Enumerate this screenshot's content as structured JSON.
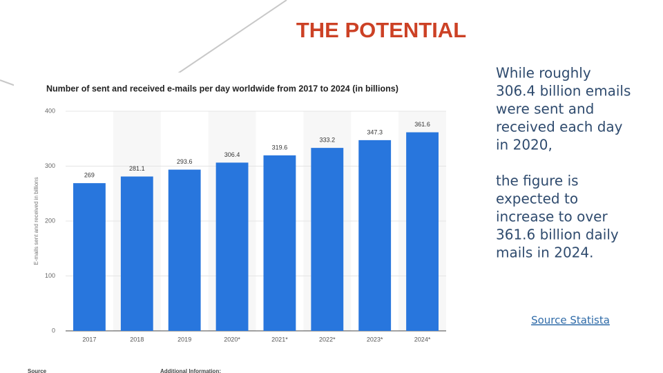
{
  "slide_title": "THE POTENTIAL",
  "chart_data": {
    "type": "bar",
    "title": "Number of sent and received e-mails per day worldwide from 2017 to 2024 (in billions)",
    "y_label": "E-mails sent and received in billions",
    "categories": [
      "2017",
      "2018",
      "2019",
      "2020*",
      "2021*",
      "2022*",
      "2023*",
      "2024*"
    ],
    "values": [
      269,
      281.1,
      293.6,
      306.4,
      319.6,
      333.2,
      347.3,
      361.6
    ],
    "color": "#2876dd",
    "ylim": [
      0,
      400
    ],
    "yticks": [
      0,
      100,
      200,
      300,
      400
    ],
    "grid": true,
    "footer": [
      "Source",
      "Additional Information:"
    ]
  },
  "side_text": [
    [
      "While roughly",
      "306.4 billion emails",
      "were sent and",
      "received each day",
      "in 2020,"
    ],
    [
      "the figure is",
      "expected to",
      "increase to over",
      "361.6 billion daily",
      "mails in 2024."
    ]
  ],
  "source_link": "Source Statista"
}
